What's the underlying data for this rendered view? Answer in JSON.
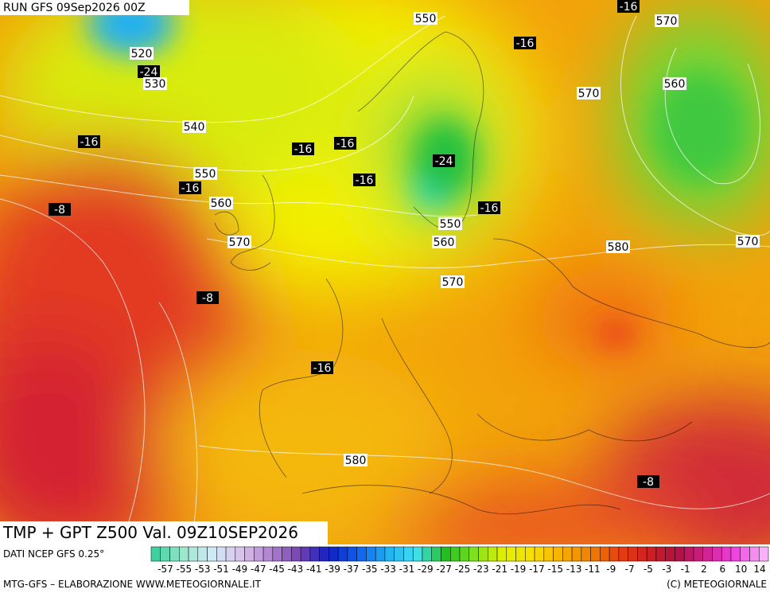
{
  "header": {
    "run": "RUN GFS 09Sep2026 00Z"
  },
  "map": {
    "temperature_labels": [
      -16,
      -24,
      -16,
      -16,
      -16,
      -16,
      -16,
      -24,
      -16,
      -8,
      -16,
      -8,
      -16,
      -8
    ],
    "height_labels": [
      550,
      570,
      520,
      530,
      560,
      570,
      540,
      550,
      560,
      550,
      560,
      570,
      570,
      580,
      570,
      580
    ]
  },
  "footer": {
    "title": "TMP + GPT Z500 Val. 09Z10SEP2026",
    "source": "DATI NCEP GFS 0.25°",
    "credit": "MTG-GFS – ELABORAZIONE WWW.METEOGIORNALE.IT",
    "copyright": "(C) METEOGIORNALE"
  },
  "colorbar": {
    "labels": [
      -57,
      -55,
      -53,
      -51,
      -49,
      -47,
      -45,
      -43,
      -41,
      -39,
      -37,
      -35,
      -33,
      -31,
      -29,
      -27,
      -25,
      -23,
      -21,
      -19,
      -17,
      -15,
      -13,
      -11,
      -9,
      -7,
      -5,
      -3,
      -1,
      2,
      6,
      10,
      14
    ]
  }
}
